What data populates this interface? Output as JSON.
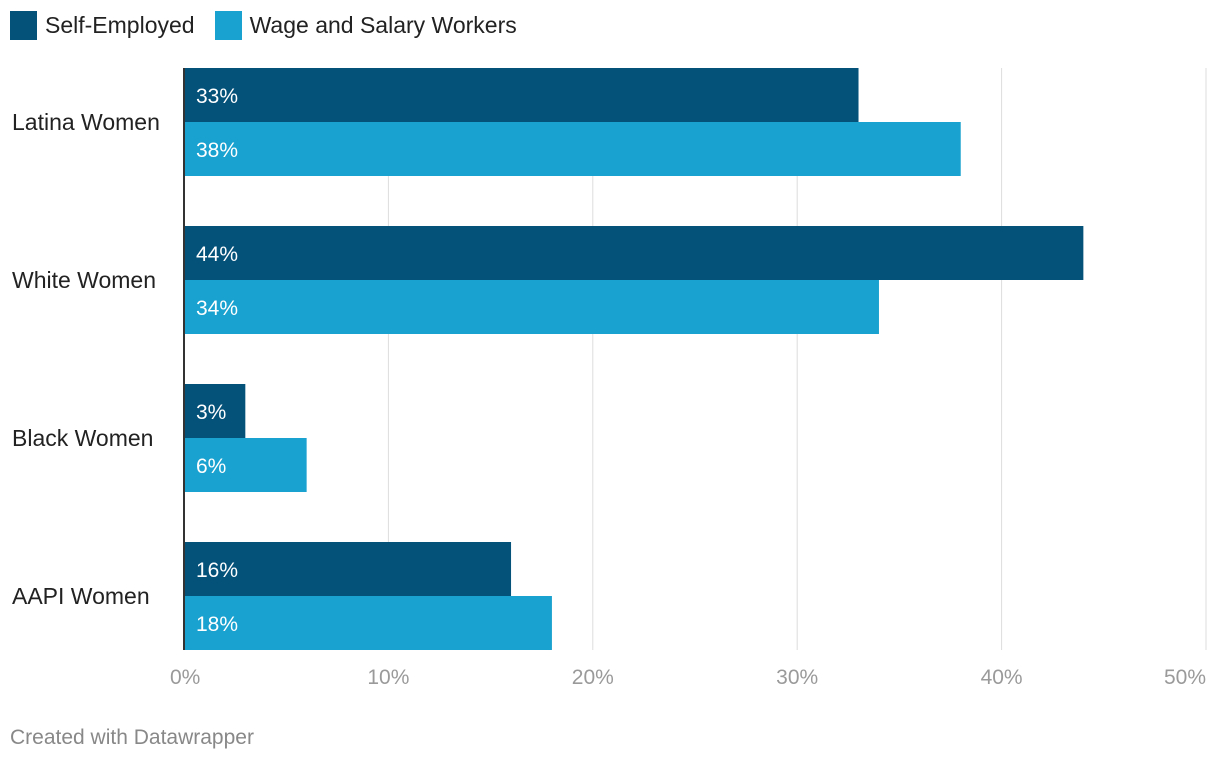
{
  "chart_data": {
    "type": "bar",
    "orientation": "horizontal",
    "title": "",
    "xlabel": "",
    "ylabel": "",
    "categories": [
      "Latina Women",
      "White Women",
      "Black Women",
      "AAPI Women"
    ],
    "series": [
      {
        "name": "Self-Employed",
        "color": "#04517a",
        "values": [
          33,
          44,
          3,
          16
        ]
      },
      {
        "name": "Wage and Salary Workers",
        "color": "#19a1cf",
        "values": [
          38,
          34,
          6,
          18
        ]
      }
    ],
    "xlim": [
      0,
      50
    ],
    "xticks": [
      0,
      10,
      20,
      30,
      40,
      50
    ],
    "tick_suffix": "%",
    "grid": true,
    "legend_position": "top-left"
  },
  "footer": {
    "credit": "Created with Datawrapper"
  }
}
